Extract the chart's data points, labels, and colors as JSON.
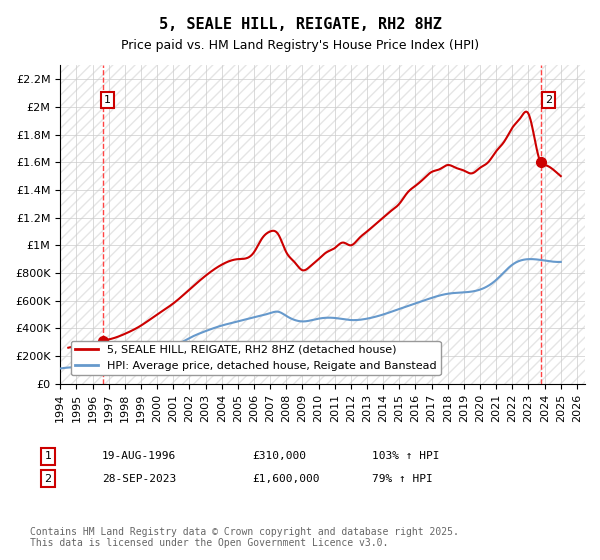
{
  "title": "5, SEALE HILL, REIGATE, RH2 8HZ",
  "subtitle": "Price paid vs. HM Land Registry's House Price Index (HPI)",
  "xlabel": "",
  "ylabel": "",
  "ylim": [
    0,
    2300000
  ],
  "xlim_start": 1994.0,
  "xlim_end": 2026.5,
  "yticks": [
    0,
    200000,
    400000,
    600000,
    800000,
    1000000,
    1200000,
    1400000,
    1600000,
    1800000,
    2000000,
    2200000
  ],
  "ytick_labels": [
    "£0",
    "£200K",
    "£400K",
    "£600K",
    "£800K",
    "£1M",
    "£1.2M",
    "£1.4M",
    "£1.6M",
    "£1.8M",
    "£2M",
    "£2.2M"
  ],
  "xticks": [
    1994,
    1995,
    1996,
    1997,
    1998,
    1999,
    2000,
    2001,
    2002,
    2003,
    2004,
    2005,
    2006,
    2007,
    2008,
    2009,
    2010,
    2011,
    2012,
    2013,
    2014,
    2015,
    2016,
    2017,
    2018,
    2019,
    2020,
    2021,
    2022,
    2023,
    2024,
    2025,
    2026
  ],
  "sale1_x": 1996.637,
  "sale1_y": 310000,
  "sale1_label": "1",
  "sale2_x": 2023.745,
  "sale2_y": 1600000,
  "sale2_label": "2",
  "red_line_color": "#cc0000",
  "blue_line_color": "#6699cc",
  "vline_color": "#ff4444",
  "bg_hatch_color": "#dddddd",
  "legend_line1": "5, SEALE HILL, REIGATE, RH2 8HZ (detached house)",
  "legend_line2": "HPI: Average price, detached house, Reigate and Banstead",
  "annotation1_date": "19-AUG-1996",
  "annotation1_price": "£310,000",
  "annotation1_hpi": "103% ↑ HPI",
  "annotation2_date": "28-SEP-2023",
  "annotation2_price": "£1,600,000",
  "annotation2_hpi": "79% ↑ HPI",
  "footnote": "Contains HM Land Registry data © Crown copyright and database right 2025.\nThis data is licensed under the Open Government Licence v3.0.",
  "title_fontsize": 11,
  "subtitle_fontsize": 9,
  "tick_fontsize": 8,
  "legend_fontsize": 8,
  "annotation_fontsize": 8,
  "footnote_fontsize": 7
}
